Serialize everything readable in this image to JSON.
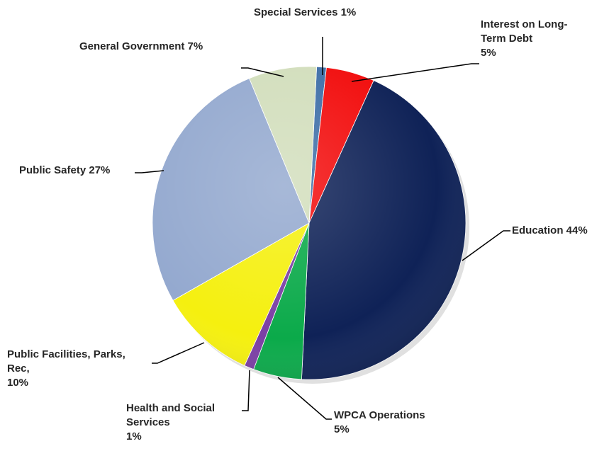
{
  "chart_data": {
    "type": "pie",
    "title": "",
    "slices": [
      {
        "name": "Special Services",
        "value": 1,
        "label": "Special Services 1%",
        "color": "#3F6FA8"
      },
      {
        "name": "Interest on Long-Term Debt",
        "value": 5,
        "label": "Interest on Long-\nTerm Debt\n5%",
        "color": "#F20C0C"
      },
      {
        "name": "Education",
        "value": 44,
        "label": "Education 44%",
        "color": "#0F2257"
      },
      {
        "name": "WPCA Operations",
        "value": 5,
        "label": "WPCA Operations\n5%",
        "color": "#0BAA4A"
      },
      {
        "name": "Health and Social Services",
        "value": 1,
        "label": "Health and Social\nServices\n1%",
        "color": "#7B3FA5"
      },
      {
        "name": "Public Facilities, Parks, Rec,",
        "value": 10,
        "label": "Public Facilities, Parks,\nRec,\n10%",
        "color": "#F5F00F"
      },
      {
        "name": "Public Safety",
        "value": 27,
        "label": "Public Safety  27%",
        "color": "#94A9CF"
      },
      {
        "name": "General Government",
        "value": 7,
        "label": "General Government 7%",
        "color": "#D2DEBC"
      }
    ]
  }
}
